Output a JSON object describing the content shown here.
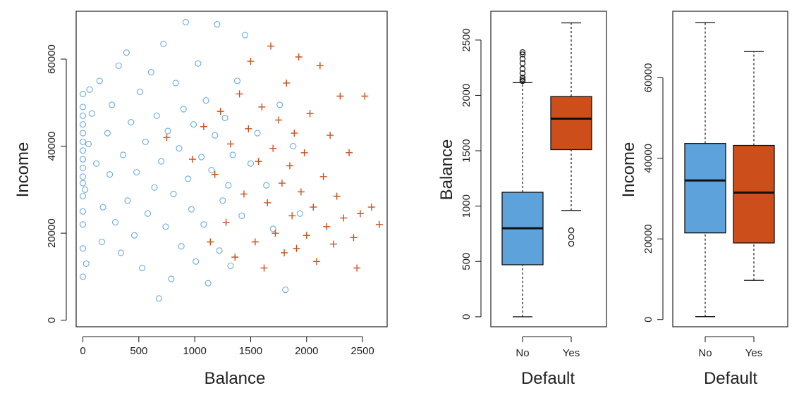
{
  "colors": {
    "no": "#6aaae0",
    "yes": "#cc4f1b",
    "box_no": "#5ea2dc",
    "box_yes": "#cc4f1b"
  },
  "chart_data": [
    {
      "type": "scatter",
      "xlabel": "Balance",
      "ylabel": "Income",
      "xlim": [
        -60,
        2720
      ],
      "ylim": [
        -1500,
        71000
      ],
      "xticks": [
        0,
        500,
        1000,
        1500,
        2000,
        2500
      ],
      "yticks": [
        0,
        20000,
        40000,
        60000
      ],
      "series": [
        {
          "name": "No",
          "marker": "circle",
          "points": [
            [
              0,
              10000
            ],
            [
              0,
              16500
            ],
            [
              0,
              22000
            ],
            [
              0,
              25000
            ],
            [
              0,
              28500
            ],
            [
              0,
              31500
            ],
            [
              0,
              33000
            ],
            [
              0,
              35000
            ],
            [
              0,
              37000
            ],
            [
              0,
              39000
            ],
            [
              0,
              41000
            ],
            [
              0,
              43000
            ],
            [
              0,
              45000
            ],
            [
              0,
              47000
            ],
            [
              0,
              49000
            ],
            [
              0,
              52000
            ],
            [
              20,
              30000
            ],
            [
              30,
              13000
            ],
            [
              50,
              40500
            ],
            [
              60,
              53000
            ],
            [
              80,
              47500
            ],
            [
              120,
              36000
            ],
            [
              150,
              55000
            ],
            [
              170,
              18000
            ],
            [
              180,
              26000
            ],
            [
              220,
              43000
            ],
            [
              240,
              33500
            ],
            [
              260,
              49500
            ],
            [
              290,
              22500
            ],
            [
              320,
              58500
            ],
            [
              340,
              15500
            ],
            [
              360,
              38000
            ],
            [
              390,
              61500
            ],
            [
              400,
              27500
            ],
            [
              430,
              45500
            ],
            [
              460,
              19500
            ],
            [
              480,
              34000
            ],
            [
              510,
              52500
            ],
            [
              530,
              12000
            ],
            [
              560,
              41000
            ],
            [
              580,
              24500
            ],
            [
              610,
              57000
            ],
            [
              640,
              30500
            ],
            [
              660,
              47000
            ],
            [
              680,
              5000
            ],
            [
              700,
              36500
            ],
            [
              720,
              63500
            ],
            [
              740,
              21500
            ],
            [
              760,
              43500
            ],
            [
              790,
              9500
            ],
            [
              810,
              29000
            ],
            [
              830,
              54500
            ],
            [
              860,
              39500
            ],
            [
              880,
              17000
            ],
            [
              900,
              48500
            ],
            [
              920,
              68500
            ],
            [
              940,
              32500
            ],
            [
              970,
              25500
            ],
            [
              990,
              45000
            ],
            [
              1010,
              13500
            ],
            [
              1030,
              59000
            ],
            [
              1060,
              37500
            ],
            [
              1080,
              22000
            ],
            [
              1100,
              50500
            ],
            [
              1120,
              8500
            ],
            [
              1150,
              34500
            ],
            [
              1180,
              42500
            ],
            [
              1200,
              68000
            ],
            [
              1220,
              16000
            ],
            [
              1250,
              27500
            ],
            [
              1270,
              46500
            ],
            [
              1300,
              31000
            ],
            [
              1320,
              12500
            ],
            [
              1340,
              38000
            ],
            [
              1380,
              55000
            ],
            [
              1420,
              24000
            ],
            [
              1450,
              65500
            ],
            [
              1500,
              36000
            ],
            [
              1560,
              43000
            ],
            [
              1640,
              31000
            ],
            [
              1700,
              21000
            ],
            [
              1760,
              49500
            ],
            [
              1810,
              7000
            ],
            [
              1880,
              40000
            ],
            [
              1940,
              24500
            ]
          ]
        },
        {
          "name": "Yes",
          "marker": "plus",
          "points": [
            [
              750,
              42000
            ],
            [
              980,
              37000
            ],
            [
              1080,
              44500
            ],
            [
              1140,
              18000
            ],
            [
              1180,
              33500
            ],
            [
              1230,
              48000
            ],
            [
              1280,
              22500
            ],
            [
              1320,
              40500
            ],
            [
              1360,
              14500
            ],
            [
              1400,
              52000
            ],
            [
              1440,
              29000
            ],
            [
              1480,
              44000
            ],
            [
              1500,
              59500
            ],
            [
              1540,
              18000
            ],
            [
              1570,
              36500
            ],
            [
              1600,
              49000
            ],
            [
              1620,
              12000
            ],
            [
              1650,
              27000
            ],
            [
              1680,
              63000
            ],
            [
              1700,
              39500
            ],
            [
              1720,
              20000
            ],
            [
              1750,
              46000
            ],
            [
              1780,
              31500
            ],
            [
              1800,
              15500
            ],
            [
              1820,
              54500
            ],
            [
              1850,
              35500
            ],
            [
              1870,
              24000
            ],
            [
              1890,
              43000
            ],
            [
              1910,
              16500
            ],
            [
              1930,
              60500
            ],
            [
              1950,
              29500
            ],
            [
              1980,
              38500
            ],
            [
              2000,
              19500
            ],
            [
              2030,
              47500
            ],
            [
              2060,
              26000
            ],
            [
              2090,
              13500
            ],
            [
              2120,
              58500
            ],
            [
              2150,
              33000
            ],
            [
              2180,
              21500
            ],
            [
              2210,
              42500
            ],
            [
              2240,
              17500
            ],
            [
              2270,
              28500
            ],
            [
              2300,
              51500
            ],
            [
              2330,
              23500
            ],
            [
              2380,
              38500
            ],
            [
              2420,
              19000
            ],
            [
              2450,
              12000
            ],
            [
              2480,
              24500
            ],
            [
              2520,
              51500
            ],
            [
              2580,
              26000
            ],
            [
              2650,
              22000
            ]
          ]
        }
      ]
    },
    {
      "type": "box",
      "xlabel": "Default",
      "ylabel": "Balance",
      "ylim": [
        -90,
        2760
      ],
      "yticks": [
        0,
        500,
        1000,
        1500,
        2000,
        2500
      ],
      "categories": [
        "No",
        "Yes"
      ],
      "boxes": [
        {
          "name": "No",
          "min": 0,
          "q1": 470,
          "median": 800,
          "q3": 1125,
          "max": 2115,
          "outliers": [
            2130,
            2145,
            2160,
            2200,
            2240,
            2290,
            2330,
            2370,
            2390
          ]
        },
        {
          "name": "Yes",
          "min": 960,
          "q1": 1510,
          "median": 1790,
          "q3": 1990,
          "max": 2655,
          "outliers": [
            660,
            720,
            780
          ]
        }
      ]
    },
    {
      "type": "box",
      "xlabel": "Default",
      "ylabel": "Income",
      "ylim": [
        -1800,
        76500
      ],
      "yticks": [
        0,
        20000,
        40000,
        60000
      ],
      "categories": [
        "No",
        "Yes"
      ],
      "boxes": [
        {
          "name": "No",
          "min": 700,
          "q1": 21500,
          "median": 34500,
          "q3": 43700,
          "max": 73700,
          "outliers": []
        },
        {
          "name": "Yes",
          "min": 9700,
          "q1": 19000,
          "median": 31500,
          "q3": 43200,
          "max": 66500,
          "outliers": []
        }
      ]
    }
  ]
}
